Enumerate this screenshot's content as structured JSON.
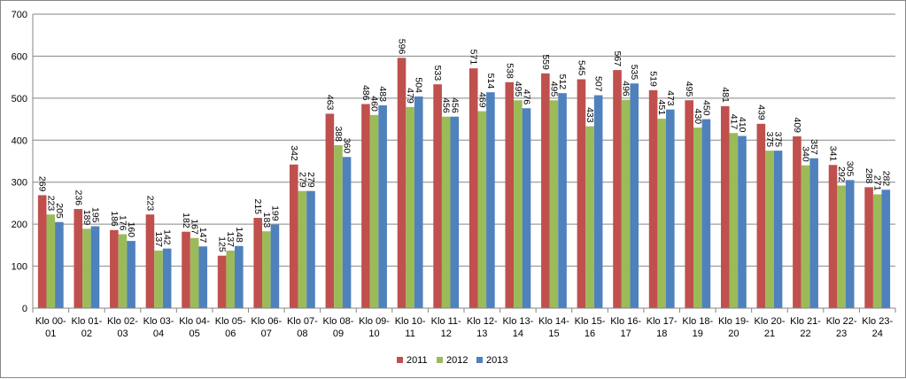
{
  "chart_data": {
    "type": "bar",
    "title": "",
    "xlabel": "",
    "ylabel": "",
    "ylim": [
      0,
      700
    ],
    "yticks": [
      0,
      100,
      200,
      300,
      400,
      500,
      600,
      700
    ],
    "grid": true,
    "legend": "bottom",
    "categories": [
      [
        "Klo 00-",
        "01"
      ],
      [
        "Klo 01-",
        "02"
      ],
      [
        "Klo 02-",
        "03"
      ],
      [
        "Klo 03-",
        "04"
      ],
      [
        "Klo 04-",
        "05"
      ],
      [
        "Klo 05-",
        "06"
      ],
      [
        "Klo 06-",
        "07"
      ],
      [
        "Klo 07-",
        "08"
      ],
      [
        "Klo 08-",
        "09"
      ],
      [
        "Klo 09-",
        "10"
      ],
      [
        "Klo 10-",
        "11"
      ],
      [
        "Klo 11-",
        "12"
      ],
      [
        "Klo 12-",
        "13"
      ],
      [
        "Klo 13-",
        "14"
      ],
      [
        "Klo 14-",
        "15"
      ],
      [
        "Klo 15-",
        "16"
      ],
      [
        "Klo 16-",
        "17"
      ],
      [
        "Klo 17-",
        "18"
      ],
      [
        "Klo 18-",
        "19"
      ],
      [
        "Klo 19-",
        "20"
      ],
      [
        "Klo 20-",
        "21"
      ],
      [
        "Klo 21-",
        "22"
      ],
      [
        "Klo 22-",
        "23"
      ],
      [
        "Klo 23-",
        "24"
      ]
    ],
    "series": [
      {
        "name": "2011",
        "color": "#c0504d",
        "values": [
          269,
          236,
          186,
          223,
          182,
          125,
          215,
          342,
          463,
          486,
          596,
          533,
          571,
          538,
          559,
          545,
          567,
          519,
          495,
          481,
          439,
          409,
          341,
          288
        ]
      },
      {
        "name": "2012",
        "color": "#9bbb59",
        "values": [
          223,
          189,
          176,
          137,
          167,
          137,
          183,
          279,
          388,
          460,
          479,
          456,
          469,
          495,
          495,
          433,
          496,
          451,
          430,
          417,
          375,
          340,
          292,
          271
        ]
      },
      {
        "name": "2013",
        "color": "#4f81bd",
        "values": [
          205,
          195,
          160,
          142,
          147,
          148,
          199,
          279,
          360,
          483,
          504,
          456,
          514,
          476,
          512,
          507,
          535,
          473,
          450,
          410,
          375,
          357,
          305,
          282
        ]
      }
    ]
  }
}
